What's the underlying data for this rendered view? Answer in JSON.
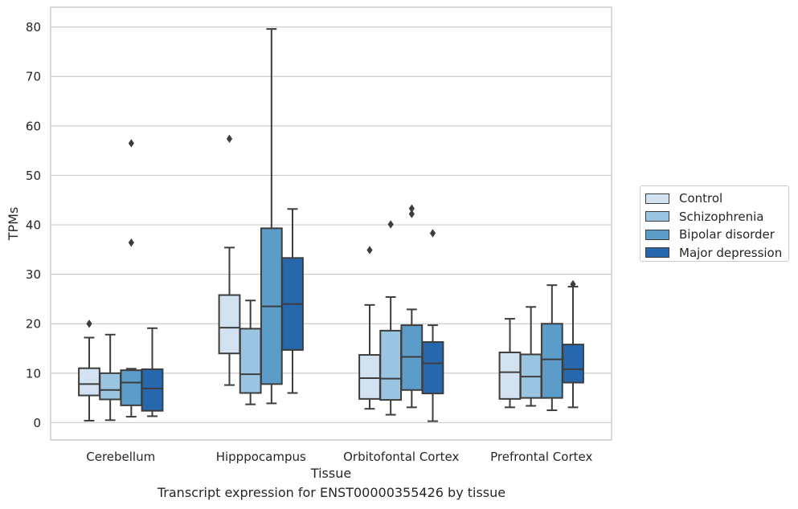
{
  "chart_data": {
    "type": "box",
    "title": "",
    "xlabel": "Tissue",
    "ylabel": "TPMs",
    "caption": "Transcript expression for ENST00000355426 by tissue",
    "ylim": [
      -3.5,
      84
    ],
    "yticks": [
      0,
      10,
      20,
      30,
      40,
      50,
      60,
      70,
      80
    ],
    "grid": "horizontal",
    "legend_position": "right",
    "categories": [
      "Cerebellum",
      "Hipppocampus",
      "Orbitofontal Cortex",
      "Prefrontal Cortex"
    ],
    "series": [
      {
        "name": "Control",
        "color": "#d2e2f1",
        "boxes": [
          {
            "whislo": 0.4,
            "q1": 5.5,
            "med": 7.8,
            "q3": 11.0,
            "whishi": 17.2,
            "fliers": [
              20.0
            ]
          },
          {
            "whislo": 7.6,
            "q1": 14.0,
            "med": 19.2,
            "q3": 25.8,
            "whishi": 35.4,
            "fliers": [
              57.4
            ]
          },
          {
            "whislo": 2.8,
            "q1": 4.8,
            "med": 9.0,
            "q3": 13.7,
            "whishi": 23.8,
            "fliers": [
              34.9
            ]
          },
          {
            "whislo": 3.1,
            "q1": 4.8,
            "med": 10.2,
            "q3": 14.2,
            "whishi": 21.0,
            "fliers": []
          }
        ]
      },
      {
        "name": "Schizophrenia",
        "color": "#9ac4df",
        "boxes": [
          {
            "whislo": 0.5,
            "q1": 4.7,
            "med": 6.6,
            "q3": 10.0,
            "whishi": 17.8,
            "fliers": []
          },
          {
            "whislo": 3.7,
            "q1": 6.0,
            "med": 9.8,
            "q3": 19.0,
            "whishi": 24.7,
            "fliers": []
          },
          {
            "whislo": 1.6,
            "q1": 4.6,
            "med": 8.9,
            "q3": 18.6,
            "whishi": 25.4,
            "fliers": [
              40.1
            ]
          },
          {
            "whislo": 3.4,
            "q1": 5.0,
            "med": 9.3,
            "q3": 13.8,
            "whishi": 23.4,
            "fliers": []
          }
        ]
      },
      {
        "name": "Bipolar disorder",
        "color": "#5b9cc9",
        "boxes": [
          {
            "whislo": 1.2,
            "q1": 3.5,
            "med": 8.1,
            "q3": 10.6,
            "whishi": 10.9,
            "fliers": [
              36.4,
              56.5
            ]
          },
          {
            "whislo": 3.9,
            "q1": 7.8,
            "med": 23.5,
            "q3": 39.3,
            "whishi": 79.6,
            "fliers": []
          },
          {
            "whislo": 3.1,
            "q1": 6.6,
            "med": 13.3,
            "q3": 19.7,
            "whishi": 22.9,
            "fliers": [
              42.2,
              43.3
            ]
          },
          {
            "whislo": 2.5,
            "q1": 5.0,
            "med": 12.8,
            "q3": 20.0,
            "whishi": 27.8,
            "fliers": []
          }
        ]
      },
      {
        "name": "Major depression",
        "color": "#2768ad",
        "boxes": [
          {
            "whislo": 1.3,
            "q1": 2.4,
            "med": 6.9,
            "q3": 10.8,
            "whishi": 19.1,
            "fliers": []
          },
          {
            "whislo": 6.0,
            "q1": 14.7,
            "med": 24.0,
            "q3": 33.3,
            "whishi": 43.2,
            "fliers": []
          },
          {
            "whislo": 0.3,
            "q1": 5.9,
            "med": 12.0,
            "q3": 16.3,
            "whishi": 19.7,
            "fliers": [
              38.3
            ]
          },
          {
            "whislo": 3.1,
            "q1": 8.1,
            "med": 10.8,
            "q3": 15.8,
            "whishi": 27.5,
            "fliers": [
              28.0
            ]
          }
        ]
      }
    ]
  }
}
